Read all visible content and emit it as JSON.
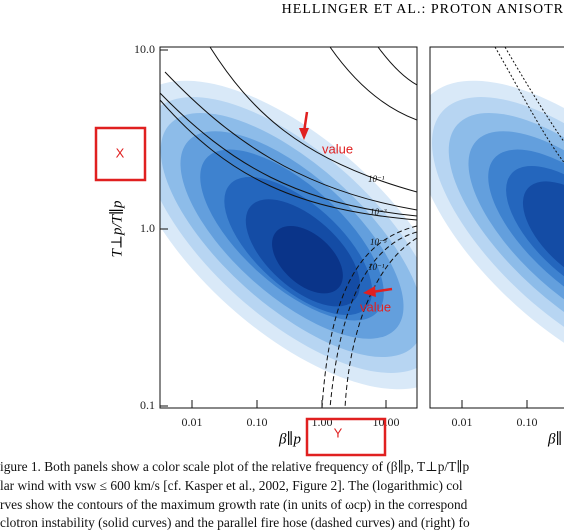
{
  "header": {
    "running_title": "HELLINGER ET AL.:  PROTON ANISOTR"
  },
  "figure": {
    "left_panel": {
      "y_tick_labels": [
        "10.0",
        "1.0",
        "0.1"
      ],
      "x_tick_labels": [
        "0.01",
        "0.10",
        "1.00",
        "10.00"
      ],
      "y_label": "T⊥p/T∥p",
      "x_label": "β∥p",
      "contour_labels": [
        "10⁻¹",
        "10⁻³",
        "10⁻³",
        "10⁻¹"
      ]
    },
    "right_panel": {
      "x_tick_labels": [
        "0.01",
        "0.10"
      ],
      "x_label": "β∥"
    },
    "annotations": {
      "x_box": "X",
      "y_box": "Y",
      "value_top": "value",
      "value_bottom": "value"
    }
  },
  "caption": {
    "lines": [
      "igure 1.  Both panels show a color scale plot of the relative frequency of (β∥p, T⊥p/T∥p",
      "lar wind with vsw ≤ 600 km/s [cf. Kasper et al., 2002, Figure 2].  The (logarithmic) col",
      "rves show the contours of the maximum growth rate (in units of ωcp) in the correspond",
      "clotron instability (solid curves) and the parallel fire hose (dashed curves) and (right) fo"
    ]
  }
}
